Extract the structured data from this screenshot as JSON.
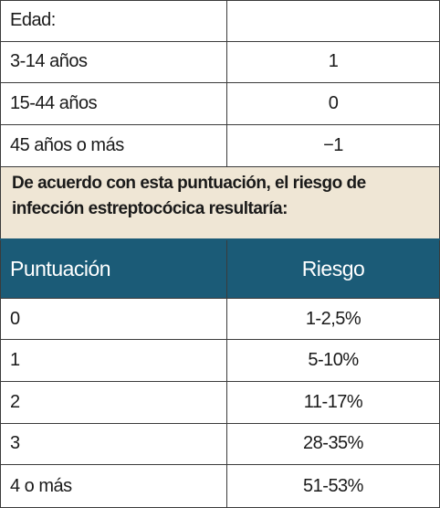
{
  "age_section": {
    "header_label": "Edad:",
    "header_value": "",
    "rows": [
      {
        "label": "3-14 años",
        "value": "1"
      },
      {
        "label": "15-44 años",
        "value": "0"
      },
      {
        "label": "45 años o más",
        "value": "−1"
      }
    ]
  },
  "note": "De acuerdo con esta puntuación, el riesgo de infección estreptocócica resultaría:",
  "risk_table": {
    "columns": [
      "Puntuación",
      "Riesgo"
    ],
    "rows": [
      {
        "score": "0",
        "risk": "1-2,5%"
      },
      {
        "score": "1",
        "risk": "5-10%"
      },
      {
        "score": "2",
        "risk": "11-17%"
      },
      {
        "score": "3",
        "risk": "28-35%"
      },
      {
        "score": "4 o más",
        "risk": "51-53%"
      }
    ]
  }
}
